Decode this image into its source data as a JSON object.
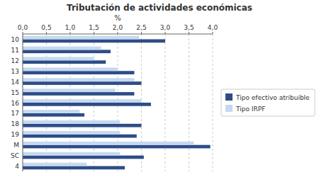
{
  "chart_data": {
    "type": "bar",
    "orientation": "horizontal",
    "title": "Tributación de actividades económicas",
    "x_label": "%",
    "categories": [
      "10",
      "11",
      "12",
      "13",
      "14",
      "15",
      "16",
      "17",
      "18",
      "19",
      "M",
      "SC",
      "4"
    ],
    "series": [
      {
        "name": "Tipo efectivo atribuible",
        "color": "#2E4D87",
        "values": [
          3.0,
          1.85,
          1.75,
          2.35,
          2.5,
          2.35,
          2.7,
          1.3,
          2.5,
          2.4,
          3.95,
          2.55,
          2.15
        ]
      },
      {
        "name": "Tipo IRPF",
        "color": "#C5D9F1",
        "values": [
          2.45,
          1.65,
          1.5,
          2.0,
          2.35,
          1.95,
          2.5,
          1.2,
          2.05,
          2.05,
          3.6,
          2.05,
          1.35
        ]
      }
    ],
    "xlim": [
      0,
      4.0
    ],
    "xticks": [
      {
        "value": 0.0,
        "label": "0,0"
      },
      {
        "value": 0.5,
        "label": "0,5"
      },
      {
        "value": 1.0,
        "label": "1,0"
      },
      {
        "value": 1.5,
        "label": "1,5"
      },
      {
        "value": 2.0,
        "label": "2,0"
      },
      {
        "value": 2.5,
        "label": "2,5"
      },
      {
        "value": 3.0,
        "label": "3,0"
      },
      {
        "value": 3.5,
        "label": "3,5"
      },
      {
        "value": 4.0,
        "label": "4,0"
      }
    ],
    "grid": true,
    "legend": "right"
  }
}
